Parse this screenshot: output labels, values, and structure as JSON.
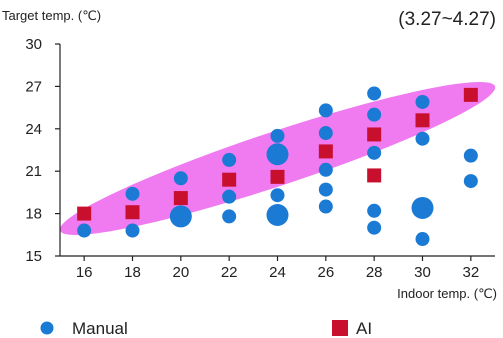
{
  "chart_data": {
    "type": "scatter",
    "title": "",
    "ylabel": "Target temp. (℃)",
    "xlabel": "Indoor temp. (℃)",
    "annotation": "(3.27~4.27)",
    "xlim": [
      15,
      33
    ],
    "ylim": [
      15,
      30
    ],
    "x_ticks": [
      16,
      18,
      20,
      22,
      24,
      26,
      28,
      30,
      32
    ],
    "y_ticks": [
      15,
      18,
      21,
      24,
      27,
      30
    ],
    "grid": false,
    "legend_position": "bottom",
    "band_color": "#f07af0",
    "series": [
      {
        "name": "Manual",
        "marker": "circle",
        "color": "#1a7ad4",
        "points": [
          {
            "x": 16,
            "y": 16.8,
            "size": 1
          },
          {
            "x": 18,
            "y": 19.4,
            "size": 1
          },
          {
            "x": 18,
            "y": 16.8,
            "size": 1
          },
          {
            "x": 20,
            "y": 20.5,
            "size": 1
          },
          {
            "x": 20,
            "y": 17.8,
            "size": 2
          },
          {
            "x": 22,
            "y": 21.8,
            "size": 1
          },
          {
            "x": 22,
            "y": 19.2,
            "size": 1
          },
          {
            "x": 22,
            "y": 17.8,
            "size": 1
          },
          {
            "x": 24,
            "y": 23.5,
            "size": 1
          },
          {
            "x": 24,
            "y": 22.2,
            "size": 2
          },
          {
            "x": 24,
            "y": 19.3,
            "size": 1
          },
          {
            "x": 24,
            "y": 17.9,
            "size": 2
          },
          {
            "x": 26,
            "y": 25.3,
            "size": 1
          },
          {
            "x": 26,
            "y": 23.7,
            "size": 1
          },
          {
            "x": 26,
            "y": 21.1,
            "size": 1
          },
          {
            "x": 26,
            "y": 19.7,
            "size": 1
          },
          {
            "x": 26,
            "y": 18.5,
            "size": 1
          },
          {
            "x": 28,
            "y": 26.5,
            "size": 1
          },
          {
            "x": 28,
            "y": 25.0,
            "size": 1
          },
          {
            "x": 28,
            "y": 22.3,
            "size": 1
          },
          {
            "x": 28,
            "y": 18.2,
            "size": 1
          },
          {
            "x": 28,
            "y": 17.0,
            "size": 1
          },
          {
            "x": 30,
            "y": 25.9,
            "size": 1
          },
          {
            "x": 30,
            "y": 23.3,
            "size": 1
          },
          {
            "x": 30,
            "y": 18.4,
            "size": 2
          },
          {
            "x": 30,
            "y": 16.2,
            "size": 1
          },
          {
            "x": 32,
            "y": 22.1,
            "size": 1
          },
          {
            "x": 32,
            "y": 20.3,
            "size": 1
          }
        ]
      },
      {
        "name": "AI",
        "marker": "square",
        "color": "#c8102e",
        "points": [
          {
            "x": 16,
            "y": 18.0
          },
          {
            "x": 18,
            "y": 18.1
          },
          {
            "x": 20,
            "y": 19.1
          },
          {
            "x": 22,
            "y": 20.4
          },
          {
            "x": 24,
            "y": 20.6
          },
          {
            "x": 26,
            "y": 22.4
          },
          {
            "x": 28,
            "y": 23.6
          },
          {
            "x": 28,
            "y": 20.7
          },
          {
            "x": 30,
            "y": 24.6
          },
          {
            "x": 32,
            "y": 26.4
          }
        ]
      }
    ]
  }
}
